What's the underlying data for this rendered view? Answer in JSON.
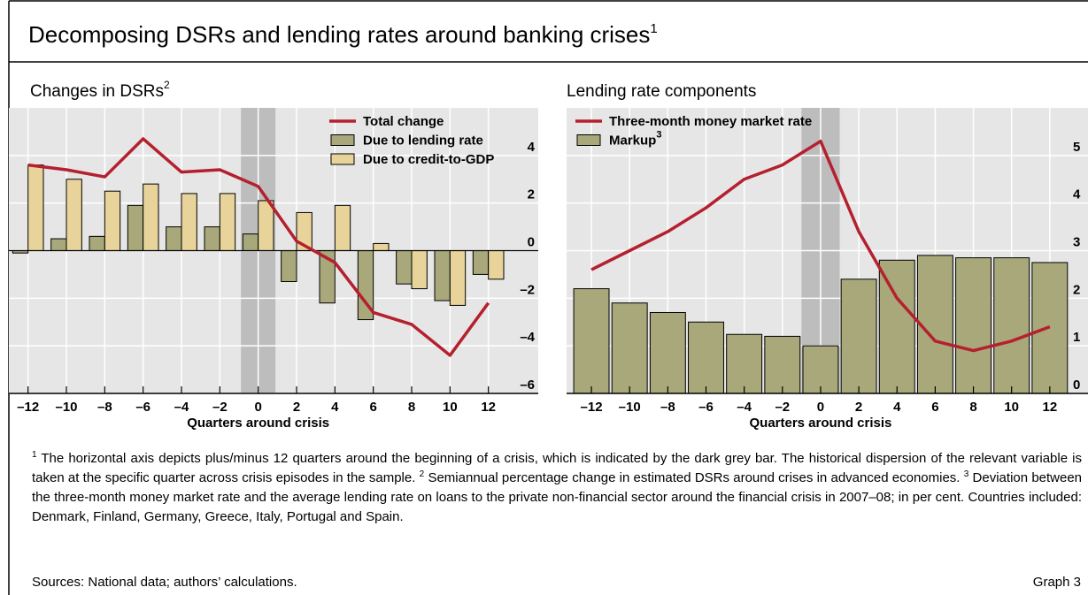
{
  "header": {
    "title": "Decomposing DSRs and lending rates around banking crises",
    "title_note": "1"
  },
  "chart_data": [
    {
      "type": "combo",
      "title": "Changes in DSRs",
      "title_note": "2",
      "xlabel": "Quarters around crisis",
      "x": [
        -12,
        -10,
        -8,
        -6,
        -4,
        -2,
        0,
        2,
        4,
        6,
        8,
        10,
        12
      ],
      "xlim": [
        -13,
        14.6
      ],
      "xticks": [
        {
          "value": -12,
          "label": "–12"
        },
        {
          "value": -10,
          "label": "–10"
        },
        {
          "value": -8,
          "label": "–8"
        },
        {
          "value": -6,
          "label": "–6"
        },
        {
          "value": -4,
          "label": "–4"
        },
        {
          "value": -2,
          "label": "–2"
        },
        0,
        2,
        4,
        6,
        8,
        10,
        12
      ],
      "ylim": [
        -6,
        6
      ],
      "yticks": [
        {
          "value": -6,
          "label": "–6"
        },
        {
          "value": -4,
          "label": "–4"
        },
        {
          "value": -2,
          "label": "–2"
        },
        0,
        2,
        4
      ],
      "crisis_band": [
        -0.9,
        0.9
      ],
      "grid": true,
      "series": [
        {
          "name": "Total change",
          "kind": "line",
          "color": "#b5202e",
          "values": [
            3.6,
            3.4,
            3.1,
            4.7,
            3.3,
            3.4,
            2.7,
            0.4,
            -0.5,
            -2.6,
            -3.1,
            -4.4,
            -2.2
          ]
        },
        {
          "name": "Due to lending rate",
          "kind": "bar",
          "color": "#a9a87a",
          "values": [
            -0.1,
            0.5,
            0.6,
            1.9,
            1.0,
            1.0,
            0.7,
            -1.3,
            -2.2,
            -2.9,
            -1.4,
            -2.1,
            -1.0
          ]
        },
        {
          "name": "Due to credit-to-GDP",
          "kind": "bar",
          "color": "#e8d49a",
          "values": [
            3.6,
            3.0,
            2.5,
            2.8,
            2.4,
            2.4,
            2.1,
            1.6,
            1.9,
            0.3,
            -1.6,
            -2.3,
            -1.2
          ]
        }
      ]
    },
    {
      "type": "combo",
      "title": "Lending rate components",
      "xlabel": "Quarters around crisis",
      "x": [
        -12,
        -10,
        -8,
        -6,
        -4,
        -2,
        0,
        2,
        4,
        6,
        8,
        10,
        12
      ],
      "xlim": [
        -13.3,
        14
      ],
      "xticks": [
        {
          "value": -12,
          "label": "–12"
        },
        {
          "value": -10,
          "label": "–10"
        },
        {
          "value": -8,
          "label": "–8"
        },
        {
          "value": -6,
          "label": "–6"
        },
        {
          "value": -4,
          "label": "–4"
        },
        {
          "value": -2,
          "label": "–2"
        },
        0,
        2,
        4,
        6,
        8,
        10,
        12
      ],
      "ylim": [
        0,
        6
      ],
      "yticks": [
        0,
        1,
        2,
        3,
        4,
        5
      ],
      "crisis_band": [
        -1,
        1
      ],
      "grid": true,
      "series": [
        {
          "name": "Three-month money market rate",
          "kind": "line",
          "color": "#b5202e",
          "values": [
            2.6,
            3.0,
            3.4,
            3.9,
            4.5,
            4.8,
            5.3,
            3.4,
            2.0,
            1.1,
            0.9,
            1.1,
            1.4
          ]
        },
        {
          "name": "Markup",
          "name_note": "3",
          "kind": "bar",
          "color": "#a9a87a",
          "values": [
            2.2,
            1.9,
            1.7,
            1.5,
            1.24,
            1.2,
            1.0,
            2.4,
            2.8,
            2.9,
            2.85,
            2.85,
            2.75
          ]
        }
      ]
    }
  ],
  "footnotes": [
    {
      "marker": "1",
      "text": "The horizontal axis depicts plus/minus 12 quarters around the beginning of a crisis, which is indicated by the dark grey bar. The historical dispersion of the relevant variable is taken at the specific quarter across crisis episodes in the sample."
    },
    {
      "marker": "2",
      "text": "Semiannual percentage change in estimated DSRs around crises in advanced economies."
    },
    {
      "marker": "3",
      "text": "Deviation between the three-month money market rate and the average lending rate on loans to the private non-financial sector around the financial crisis in 2007–08; in per cent. Countries included: Denmark, Finland, Germany, Greece, Italy, Portugal and Spain."
    }
  ],
  "sources": "Sources: National data; authors’ calculations.",
  "graph_label": "Graph 3"
}
